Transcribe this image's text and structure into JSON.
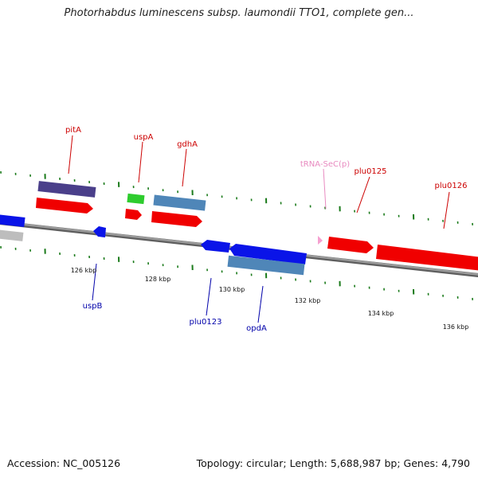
{
  "title": "Photorhabdus luminescens subsp. laumondii TTO1, complete gen...",
  "footer": {
    "accession": "Accession: NC_005126",
    "summary": "Topology: circular; Length: 5,688,987 bp; Genes: 4,790"
  },
  "colors": {
    "backbone": "#8a8a8a",
    "tick": "#1a7a1a",
    "gene_red": "#f00000",
    "gene_blue": "#0a14e8",
    "gene_steel": "#4f86b8",
    "gene_purple": "#4a3f8a",
    "gene_green": "#2ecc2e",
    "gene_gray": "#bdbdbd",
    "trna_pink": "#f5a0d0",
    "label_red": "#cc0000",
    "label_blue": "#0000aa",
    "label_pink": "#e88ac0"
  },
  "scale_labels": [
    "126 kbp",
    "128 kbp",
    "130 kbp",
    "132 kbp",
    "134 kbp",
    "136 kbp"
  ],
  "gene_labels": [
    {
      "name": "pitA",
      "color": "label_red"
    },
    {
      "name": "uspA",
      "color": "label_red"
    },
    {
      "name": "gdhA",
      "color": "label_red"
    },
    {
      "name": "tRNA-SeC(p)",
      "color": "label_pink"
    },
    {
      "name": "plu0125",
      "color": "label_red"
    },
    {
      "name": "plu0126",
      "color": "label_red"
    },
    {
      "name": "uspB",
      "color": "label_blue"
    },
    {
      "name": "plu0123",
      "color": "label_blue"
    },
    {
      "name": "opdA",
      "color": "label_blue"
    }
  ]
}
